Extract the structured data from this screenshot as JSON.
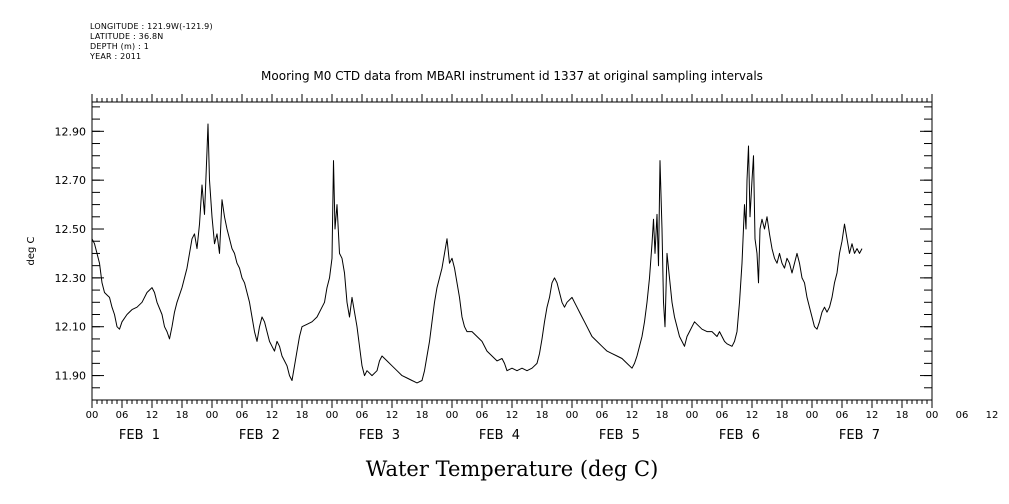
{
  "meta": {
    "longitude": "LONGITUDE : 121.9W(-121.9)",
    "latitude": "LATITUDE : 36.8N",
    "depth": "DEPTH (m) : 1",
    "year": "YEAR : 2011"
  },
  "chart_data": {
    "type": "line",
    "title": "Mooring M0 CTD data from MBARI instrument id 1337 at original sampling intervals",
    "ylabel": "deg C",
    "xlabel": "Water Temperature (deg C)",
    "ylim": [
      11.8,
      13.02
    ],
    "xlim_hours": [
      0,
      168
    ],
    "y_ticks": [
      "12.90",
      "12.70",
      "12.50",
      "12.30",
      "12.10",
      "11.90"
    ],
    "y_tick_values": [
      12.9,
      12.7,
      12.5,
      12.3,
      12.1,
      11.9
    ],
    "x_hour_labels": [
      "00",
      "06",
      "12",
      "18",
      "00",
      "06",
      "12",
      "18",
      "00",
      "06",
      "12",
      "18",
      "00",
      "06",
      "12",
      "18",
      "00",
      "06",
      "12",
      "18",
      "00",
      "06",
      "12",
      "18",
      "00",
      "06",
      "12",
      "18",
      "00",
      "06",
      "12",
      "18",
      "00"
    ],
    "day_labels": [
      "FEB  1",
      "FEB  2",
      "FEB  3",
      "FEB  4",
      "FEB  5",
      "FEB  6",
      "FEB  7"
    ],
    "grid": false,
    "series": [
      {
        "color": "#000000",
        "points": [
          [
            0,
            12.46
          ],
          [
            0.5,
            12.44
          ],
          [
            1,
            12.4
          ],
          [
            1.5,
            12.36
          ],
          [
            2,
            12.28
          ],
          [
            2.5,
            12.24
          ],
          [
            3,
            12.23
          ],
          [
            3.5,
            12.22
          ],
          [
            4,
            12.18
          ],
          [
            4.5,
            12.15
          ],
          [
            5,
            12.1
          ],
          [
            5.5,
            12.09
          ],
          [
            6,
            12.12
          ],
          [
            7,
            12.15
          ],
          [
            8,
            12.17
          ],
          [
            9,
            12.18
          ],
          [
            10,
            12.2
          ],
          [
            11,
            12.24
          ],
          [
            12,
            12.26
          ],
          [
            12.5,
            12.24
          ],
          [
            13,
            12.2
          ],
          [
            14,
            12.15
          ],
          [
            14.5,
            12.1
          ],
          [
            15,
            12.08
          ],
          [
            15.5,
            12.05
          ],
          [
            16,
            12.1
          ],
          [
            16.5,
            12.16
          ],
          [
            17,
            12.2
          ],
          [
            18,
            12.26
          ],
          [
            19,
            12.34
          ],
          [
            19.5,
            12.4
          ],
          [
            20,
            12.46
          ],
          [
            20.5,
            12.48
          ],
          [
            21,
            12.42
          ],
          [
            21.5,
            12.52
          ],
          [
            22,
            12.68
          ],
          [
            22.5,
            12.56
          ],
          [
            23,
            12.82
          ],
          [
            23.2,
            12.93
          ],
          [
            23.5,
            12.7
          ],
          [
            24,
            12.55
          ],
          [
            24.5,
            12.44
          ],
          [
            25,
            12.48
          ],
          [
            25.5,
            12.4
          ],
          [
            26,
            12.62
          ],
          [
            26.5,
            12.55
          ],
          [
            27,
            12.5
          ],
          [
            27.5,
            12.46
          ],
          [
            28,
            12.42
          ],
          [
            28.5,
            12.4
          ],
          [
            29,
            12.36
          ],
          [
            29.5,
            12.34
          ],
          [
            30,
            12.3
          ],
          [
            30.5,
            12.28
          ],
          [
            31,
            12.24
          ],
          [
            31.5,
            12.2
          ],
          [
            32,
            12.14
          ],
          [
            32.5,
            12.08
          ],
          [
            33,
            12.04
          ],
          [
            33.5,
            12.1
          ],
          [
            34,
            12.14
          ],
          [
            34.5,
            12.12
          ],
          [
            35,
            12.08
          ],
          [
            35.5,
            12.04
          ],
          [
            36,
            12.02
          ],
          [
            36.5,
            12.0
          ],
          [
            37,
            12.04
          ],
          [
            37.5,
            12.02
          ],
          [
            38,
            11.98
          ],
          [
            38.5,
            11.96
          ],
          [
            39,
            11.94
          ],
          [
            39.5,
            11.9
          ],
          [
            40,
            11.88
          ],
          [
            40.5,
            11.94
          ],
          [
            41,
            12.0
          ],
          [
            41.5,
            12.06
          ],
          [
            42,
            12.1
          ],
          [
            43,
            12.11
          ],
          [
            44,
            12.12
          ],
          [
            45,
            12.14
          ],
          [
            46,
            12.18
          ],
          [
            46.5,
            12.2
          ],
          [
            47,
            12.26
          ],
          [
            47.5,
            12.3
          ],
          [
            48,
            12.38
          ],
          [
            48.3,
            12.78
          ],
          [
            48.6,
            12.5
          ],
          [
            49,
            12.6
          ],
          [
            49.5,
            12.4
          ],
          [
            50,
            12.38
          ],
          [
            50.5,
            12.32
          ],
          [
            51,
            12.2
          ],
          [
            51.5,
            12.14
          ],
          [
            52,
            12.22
          ],
          [
            52.5,
            12.16
          ],
          [
            53,
            12.1
          ],
          [
            53.5,
            12.02
          ],
          [
            54,
            11.94
          ],
          [
            54.5,
            11.9
          ],
          [
            55,
            11.92
          ],
          [
            56,
            11.9
          ],
          [
            57,
            11.92
          ],
          [
            57.5,
            11.96
          ],
          [
            58,
            11.98
          ],
          [
            59,
            11.96
          ],
          [
            60,
            11.94
          ],
          [
            61,
            11.92
          ],
          [
            62,
            11.9
          ],
          [
            63,
            11.89
          ],
          [
            64,
            11.88
          ],
          [
            65,
            11.87
          ],
          [
            66,
            11.88
          ],
          [
            66.5,
            11.92
          ],
          [
            67,
            11.98
          ],
          [
            67.5,
            12.04
          ],
          [
            68,
            12.12
          ],
          [
            68.5,
            12.2
          ],
          [
            69,
            12.26
          ],
          [
            69.5,
            12.3
          ],
          [
            70,
            12.34
          ],
          [
            70.5,
            12.4
          ],
          [
            71,
            12.46
          ],
          [
            71.5,
            12.36
          ],
          [
            72,
            12.38
          ],
          [
            72.5,
            12.34
          ],
          [
            73,
            12.28
          ],
          [
            73.5,
            12.22
          ],
          [
            74,
            12.14
          ],
          [
            74.5,
            12.1
          ],
          [
            75,
            12.08
          ],
          [
            76,
            12.08
          ],
          [
            77,
            12.06
          ],
          [
            78,
            12.04
          ],
          [
            79,
            12.0
          ],
          [
            80,
            11.98
          ],
          [
            81,
            11.96
          ],
          [
            82,
            11.97
          ],
          [
            82.5,
            11.95
          ],
          [
            83,
            11.92
          ],
          [
            84,
            11.93
          ],
          [
            85,
            11.92
          ],
          [
            86,
            11.93
          ],
          [
            87,
            11.92
          ],
          [
            88,
            11.93
          ],
          [
            89,
            11.95
          ],
          [
            89.5,
            11.99
          ],
          [
            90,
            12.05
          ],
          [
            90.5,
            12.12
          ],
          [
            91,
            12.18
          ],
          [
            91.5,
            12.22
          ],
          [
            92,
            12.28
          ],
          [
            92.5,
            12.3
          ],
          [
            93,
            12.28
          ],
          [
            93.5,
            12.24
          ],
          [
            94,
            12.2
          ],
          [
            94.5,
            12.18
          ],
          [
            95,
            12.2
          ],
          [
            96,
            12.22
          ],
          [
            96.5,
            12.2
          ],
          [
            97,
            12.18
          ],
          [
            97.5,
            12.16
          ],
          [
            98,
            12.14
          ],
          [
            98.5,
            12.12
          ],
          [
            99,
            12.1
          ],
          [
            99.5,
            12.08
          ],
          [
            100,
            12.06
          ],
          [
            101,
            12.04
          ],
          [
            102,
            12.02
          ],
          [
            103,
            12.0
          ],
          [
            104,
            11.99
          ],
          [
            105,
            11.98
          ],
          [
            106,
            11.97
          ],
          [
            107,
            11.95
          ],
          [
            108,
            11.93
          ],
          [
            108.5,
            11.95
          ],
          [
            109,
            11.98
          ],
          [
            109.5,
            12.02
          ],
          [
            110,
            12.06
          ],
          [
            110.5,
            12.12
          ],
          [
            111,
            12.2
          ],
          [
            111.5,
            12.3
          ],
          [
            112,
            12.44
          ],
          [
            112.3,
            12.54
          ],
          [
            112.6,
            12.4
          ],
          [
            113,
            12.56
          ],
          [
            113.3,
            12.35
          ],
          [
            113.6,
            12.78
          ],
          [
            114,
            12.5
          ],
          [
            114.3,
            12.2
          ],
          [
            114.6,
            12.1
          ],
          [
            115,
            12.4
          ],
          [
            115.5,
            12.3
          ],
          [
            116,
            12.2
          ],
          [
            116.5,
            12.14
          ],
          [
            117,
            12.1
          ],
          [
            117.5,
            12.06
          ],
          [
            118,
            12.04
          ],
          [
            118.5,
            12.02
          ],
          [
            119,
            12.06
          ],
          [
            119.5,
            12.08
          ],
          [
            120,
            12.1
          ],
          [
            120.5,
            12.12
          ],
          [
            121,
            12.11
          ],
          [
            122,
            12.09
          ],
          [
            123,
            12.08
          ],
          [
            124,
            12.08
          ],
          [
            125,
            12.06
          ],
          [
            125.5,
            12.08
          ],
          [
            126,
            12.06
          ],
          [
            126.5,
            12.04
          ],
          [
            127,
            12.03
          ],
          [
            128,
            12.02
          ],
          [
            128.5,
            12.04
          ],
          [
            129,
            12.08
          ],
          [
            129.5,
            12.2
          ],
          [
            130,
            12.36
          ],
          [
            130.5,
            12.6
          ],
          [
            130.8,
            12.5
          ],
          [
            131,
            12.7
          ],
          [
            131.3,
            12.84
          ],
          [
            131.6,
            12.55
          ],
          [
            132,
            12.7
          ],
          [
            132.3,
            12.8
          ],
          [
            132.6,
            12.46
          ],
          [
            133,
            12.4
          ],
          [
            133.3,
            12.28
          ],
          [
            133.6,
            12.5
          ],
          [
            134,
            12.54
          ],
          [
            134.5,
            12.5
          ],
          [
            135,
            12.55
          ],
          [
            135.5,
            12.48
          ],
          [
            136,
            12.42
          ],
          [
            136.5,
            12.38
          ],
          [
            137,
            12.36
          ],
          [
            137.5,
            12.4
          ],
          [
            138,
            12.36
          ],
          [
            138.5,
            12.34
          ],
          [
            139,
            12.38
          ],
          [
            139.5,
            12.36
          ],
          [
            140,
            12.32
          ],
          [
            140.5,
            12.36
          ],
          [
            141,
            12.4
          ],
          [
            141.5,
            12.36
          ],
          [
            142,
            12.3
          ],
          [
            142.5,
            12.28
          ],
          [
            143,
            12.22
          ],
          [
            143.5,
            12.18
          ],
          [
            144,
            12.14
          ],
          [
            144.5,
            12.1
          ],
          [
            145,
            12.09
          ],
          [
            145.5,
            12.12
          ],
          [
            146,
            12.16
          ],
          [
            146.5,
            12.18
          ],
          [
            147,
            12.16
          ],
          [
            147.5,
            12.18
          ],
          [
            148,
            12.22
          ],
          [
            148.5,
            12.28
          ],
          [
            149,
            12.32
          ],
          [
            149.5,
            12.4
          ],
          [
            150,
            12.45
          ],
          [
            150.5,
            12.52
          ],
          [
            151,
            12.46
          ],
          [
            151.5,
            12.4
          ],
          [
            152,
            12.44
          ],
          [
            152.5,
            12.4
          ],
          [
            153,
            12.42
          ],
          [
            153.5,
            12.4
          ],
          [
            154,
            12.42
          ]
        ]
      }
    ]
  }
}
